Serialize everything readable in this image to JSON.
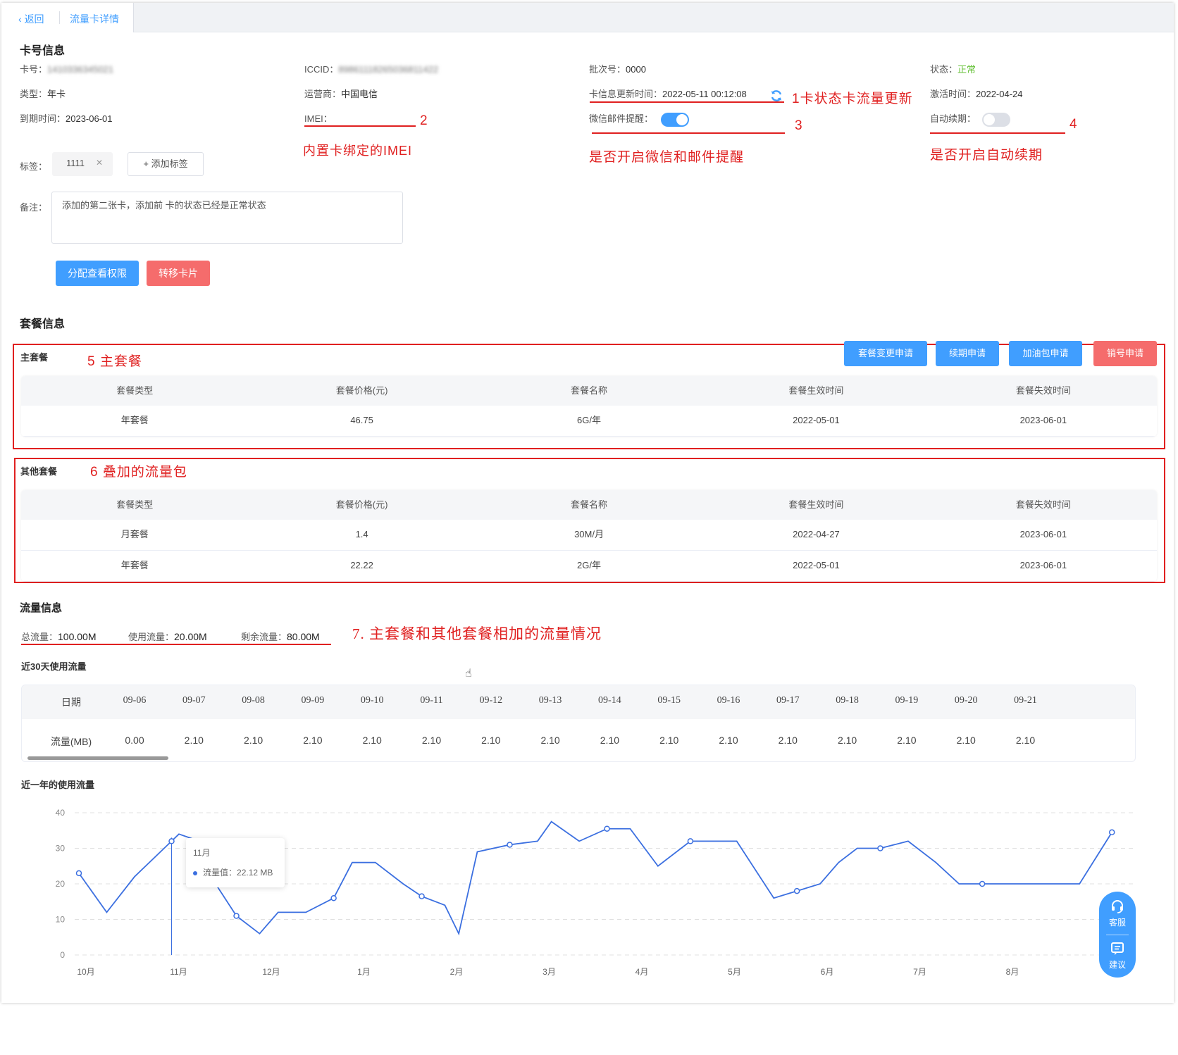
{
  "tabs": {
    "back_label": "返回",
    "active_tab": "流量卡详情"
  },
  "card_info": {
    "section_title": "卡号信息",
    "card_no_label": "卡号：",
    "card_no": "1410336345021",
    "iccid_label": "ICCID：",
    "iccid": "89861118265036811422",
    "batch_label": "批次号：",
    "batch": "0000",
    "status_label": "状态：",
    "status": "正常",
    "type_label": "类型：",
    "type": "年卡",
    "operator_label": "运营商：",
    "operator": "中国电信",
    "update_time_label": "卡信息更新时间：",
    "update_time": "2022-05-11 00:12:08",
    "activate_label": "激活时间：",
    "activate_time": "2022-04-24",
    "expire_label": "到期时间：",
    "expire_time": "2023-06-01",
    "imei_label": "IMEI：",
    "imei": "",
    "wechat_label": "微信邮件提醒：",
    "wechat_on": true,
    "auto_renew_label": "自动续期：",
    "auto_renew_on": false,
    "tags_label": "标签：",
    "tag": "1111",
    "add_tag_label": "+ 添加标签",
    "remark_label": "备注：",
    "remark": "添加的第二张卡，添加前 卡的状态已经是正常状态",
    "assign_btn": "分配查看权限",
    "transfer_btn": "转移卡片"
  },
  "annotations": {
    "a1": "1卡状态卡流量更新",
    "a2_num": "2",
    "a2": "内置卡绑定的IMEI",
    "a3_num": "3",
    "a3": "是否开启微信和邮件提醒",
    "a4_num": "4",
    "a4": "是否开启自动续期",
    "a5": "5 主套餐",
    "a6": "6 叠加的流量包",
    "a7": "7. 主套餐和其他套餐相加的流量情况"
  },
  "package_info": {
    "section_title": "套餐信息",
    "main_title": "主套餐",
    "buttons": [
      "套餐变更申请",
      "续期申请",
      "加油包申请",
      "销号申请"
    ],
    "columns": [
      "套餐类型",
      "套餐价格(元)",
      "套餐名称",
      "套餐生效时间",
      "套餐失效时间"
    ],
    "main_rows": [
      [
        "年套餐",
        "46.75",
        "6G/年",
        "2022-05-01",
        "2023-06-01"
      ]
    ],
    "other_title": "其他套餐",
    "other_rows": [
      [
        "月套餐",
        "1.4",
        "30M/月",
        "2022-04-27",
        "2023-06-01"
      ],
      [
        "年套餐",
        "22.22",
        "2G/年",
        "2022-05-01",
        "2023-06-01"
      ]
    ]
  },
  "flow_info": {
    "section_title": "流量信息",
    "total_label": "总流量：",
    "total": "100.00M",
    "used_label": "使用流量：",
    "used": "20.00M",
    "remain_label": "剩余流量：",
    "remain": "80.00M",
    "recent30_title": "近30天使用流量",
    "date_header": "日期",
    "flow_header": "流量(MB)",
    "dates": [
      "09-06",
      "09-07",
      "09-08",
      "09-09",
      "09-10",
      "09-11",
      "09-12",
      "09-13",
      "09-14",
      "09-15",
      "09-16",
      "09-17",
      "09-18",
      "09-19",
      "09-20",
      "09-21"
    ],
    "values": [
      "0.00",
      "2.10",
      "2.10",
      "2.10",
      "2.10",
      "2.10",
      "2.10",
      "2.10",
      "2.10",
      "2.10",
      "2.10",
      "2.10",
      "2.10",
      "2.10",
      "2.10",
      "2.10"
    ],
    "year_title": "近一年的使用流量"
  },
  "tooltip": {
    "month": "11月",
    "label": "流量值：",
    "value": "22.12 MB"
  },
  "widget": {
    "service": "客服",
    "suggest": "建议"
  },
  "chart_data": {
    "type": "line",
    "title": "近一年的使用流量",
    "categories": [
      "10月",
      "11月",
      "12月",
      "1月",
      "2月",
      "3月",
      "4月",
      "5月",
      "6月",
      "7月",
      "8月"
    ],
    "y_ticks": [
      0,
      10,
      20,
      30,
      40
    ],
    "ylim": [
      0,
      40
    ],
    "grid": true,
    "series": [
      {
        "color": "#3b6fe0",
        "x": [
          0.0,
          0.3,
          0.6,
          1.0,
          1.08,
          1.3,
          1.5,
          1.7,
          1.95,
          2.15,
          2.45,
          2.75,
          2.95,
          3.2,
          3.5,
          3.7,
          3.95,
          4.1,
          4.3,
          4.65,
          4.95,
          5.1,
          5.4,
          5.7,
          5.95,
          6.25,
          6.6,
          6.85,
          7.1,
          7.5,
          7.75,
          8.0,
          8.2,
          8.4,
          8.65,
          8.95,
          9.25,
          9.5,
          9.75,
          9.97,
          10.4,
          10.8,
          11.15
        ],
        "y": [
          23,
          12,
          22,
          32,
          34,
          32,
          19,
          11,
          6,
          12,
          12,
          16,
          26,
          26,
          20,
          16.5,
          14,
          6,
          29,
          31,
          32,
          37.5,
          32,
          35.5,
          35.5,
          25,
          32,
          32,
          32,
          16,
          18,
          20,
          26,
          30,
          30,
          32,
          26,
          20,
          20,
          20,
          20,
          20,
          34.5
        ],
        "markers": [
          0,
          3,
          7,
          11,
          15,
          19,
          23,
          26,
          30,
          34,
          38,
          42
        ]
      }
    ]
  }
}
